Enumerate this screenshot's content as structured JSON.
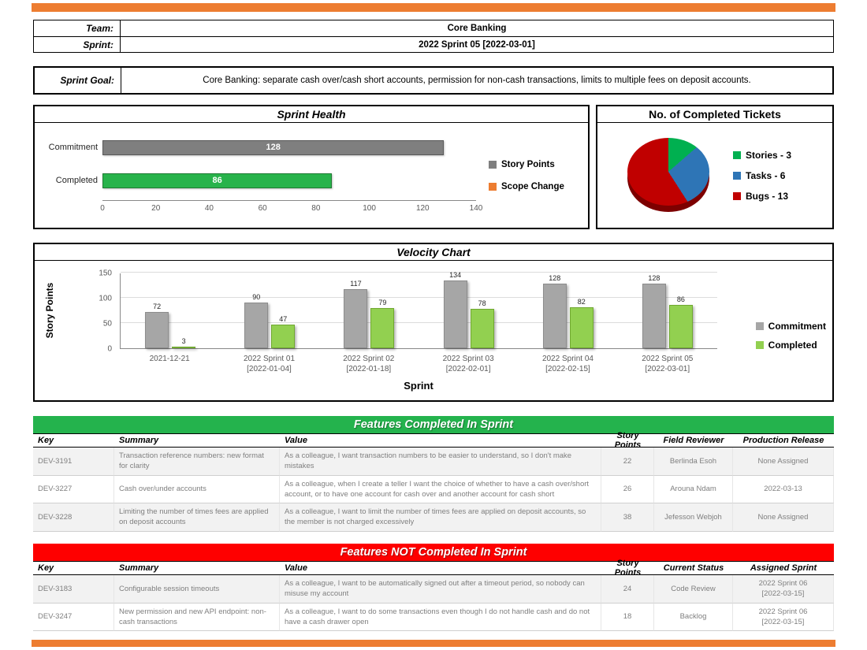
{
  "accent": {
    "orange": "#ED7D31",
    "green": "#24B34D",
    "red": "#FE0000"
  },
  "header": {
    "team_label": "Team:",
    "team_value": "Core Banking",
    "sprint_label": "Sprint:",
    "sprint_value": "2022 Sprint 05 [2022-03-01]",
    "goal_label": "Sprint Goal:",
    "goal_value": "Core Banking: separate cash over/cash short accounts, permission for non-cash transactions, limits to multiple fees on deposit accounts."
  },
  "chart_data": [
    {
      "id": "sprint_health",
      "type": "bar",
      "orientation": "horizontal",
      "title": "Sprint Health",
      "categories": [
        "Commitment",
        "Completed"
      ],
      "values": [
        128,
        86
      ],
      "bar_colors": [
        "#7F7F7F",
        "#28B34B"
      ],
      "bar_border_colors": [
        "#595959",
        "#1F7A33"
      ],
      "xlim": [
        0,
        140
      ],
      "xticks": [
        0,
        20,
        40,
        60,
        80,
        100,
        120,
        140
      ],
      "grid": false,
      "legend_position": "right",
      "legend": [
        {
          "label": "Story Points",
          "color": "#7F7F7F"
        },
        {
          "label": "Scope Change",
          "color": "#ED7D31"
        }
      ]
    },
    {
      "id": "completed_tickets",
      "type": "pie",
      "title": "No. of Completed Tickets",
      "legend_position": "right",
      "slices": [
        {
          "label": "Stories - 3",
          "value": 3,
          "color": "#00B050"
        },
        {
          "label": "Tasks - 6",
          "value": 6,
          "color": "#2E75B6"
        },
        {
          "label": "Bugs - 13",
          "value": 13,
          "color": "#C00000"
        }
      ]
    },
    {
      "id": "velocity",
      "type": "bar",
      "title": "Velocity Chart",
      "xlabel": "Sprint",
      "ylabel": "Story Points",
      "ylim": [
        0,
        150
      ],
      "yticks": [
        0,
        50,
        100,
        150
      ],
      "grid": true,
      "legend_position": "right",
      "categories": [
        "2021-12-21",
        "2022 Sprint 01\n[2022-01-04]",
        "2022 Sprint 02\n[2022-01-18]",
        "2022 Sprint 03\n[2022-02-01]",
        "2022 Sprint 04\n[2022-02-15]",
        "2022 Sprint 05\n[2022-03-01]"
      ],
      "series": [
        {
          "name": "Commitment",
          "color": "#A6A6A6",
          "border": "#8C8C8C",
          "values": [
            72,
            90,
            117,
            134,
            128,
            128
          ]
        },
        {
          "name": "Completed",
          "color": "#92D050",
          "border": "#70A830",
          "values": [
            3,
            47,
            79,
            78,
            82,
            86
          ]
        }
      ]
    }
  ],
  "completed_features": {
    "title": "Features Completed In Sprint",
    "header_color": "#24B34D",
    "columns": [
      "Key",
      "Summary",
      "Value",
      "Story Points",
      "Field Reviewer",
      "Production Release"
    ],
    "rows": [
      [
        "DEV-3191",
        "Transaction reference numbers: new format for clarity",
        "As a colleague, I want transaction numbers to be easier to understand, so I don't make mistakes",
        "22",
        "Berlinda Esoh",
        "None Assigned"
      ],
      [
        "DEV-3227",
        "Cash over/under accounts",
        "As a colleague, when I create a teller I want the choice of whether to have a cash over/short account, or to have one account for cash over and another account for cash short",
        "26",
        "Arouna Ndam",
        "2022-03-13"
      ],
      [
        "DEV-3228",
        "Limiting the number of times fees are applied on deposit accounts",
        "As a colleague, I want to limit the number of times fees are applied on deposit accounts, so the member is not charged excessively",
        "38",
        "Jefesson Webjoh",
        "None Assigned"
      ]
    ]
  },
  "not_completed_features": {
    "title": "Features NOT Completed In Sprint",
    "header_color": "#FE0000",
    "columns": [
      "Key",
      "Summary",
      "Value",
      "Story Points",
      "Current Status",
      "Assigned Sprint"
    ],
    "rows": [
      [
        "DEV-3183",
        "Configurable session timeouts",
        "As a colleague, I want to be automatically signed out after a timeout period, so nobody can misuse my account",
        "24",
        "Code Review",
        "2022 Sprint 06\n[2022-03-15]"
      ],
      [
        "DEV-3247",
        "New permission and new API endpoint: non-cash transactions",
        "As a colleague, I want to do some transactions even though I do not handle cash and do not have a cash drawer open",
        "18",
        "Backlog",
        "2022 Sprint 06\n[2022-03-15]"
      ]
    ]
  }
}
